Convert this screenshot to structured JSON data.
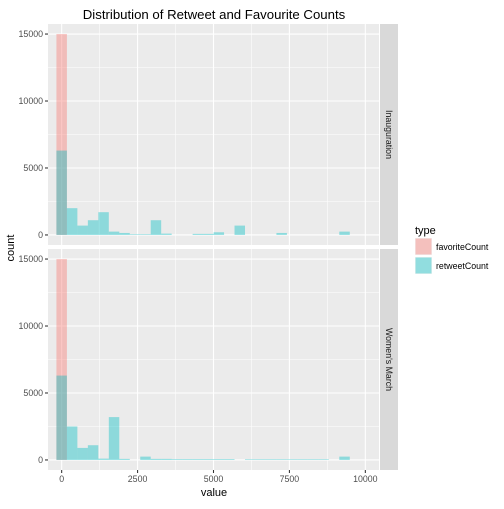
{
  "chart_data": {
    "type": "histogram",
    "title": "Distribution of Retweet and Favourite Counts",
    "xlabel": "value",
    "ylabel": "count",
    "xlim": [
      -450,
      10450
    ],
    "ylim": [
      -750,
      15750
    ],
    "x_ticks": [
      0,
      2500,
      5000,
      7500,
      10000
    ],
    "x_tick_labels": [
      "0",
      "2500",
      "5000",
      "7500",
      "10000"
    ],
    "y_ticks": [
      0,
      5000,
      10000,
      15000
    ],
    "y_tick_labels": [
      "0",
      "5000",
      "10000",
      "15000"
    ],
    "bin_width": 345,
    "grid": true,
    "legend": {
      "title": "type",
      "position": "right",
      "entries": [
        {
          "label": "favoriteCount",
          "color": "#f8766d"
        },
        {
          "label": "retweetCount",
          "color": "#00bfc4"
        }
      ]
    },
    "facets": [
      {
        "label": "Inauguration",
        "series": [
          {
            "name": "favoriteCount",
            "color": "#f8766d",
            "bins": [
              {
                "x": 0,
                "count": 15000
              }
            ]
          },
          {
            "name": "retweetCount",
            "color": "#00bfc4",
            "bins": [
              {
                "x": 0,
                "count": 6300
              },
              {
                "x": 345,
                "count": 2000
              },
              {
                "x": 690,
                "count": 700
              },
              {
                "x": 1035,
                "count": 1100
              },
              {
                "x": 1380,
                "count": 1700
              },
              {
                "x": 1725,
                "count": 250
              },
              {
                "x": 2070,
                "count": 150
              },
              {
                "x": 2415,
                "count": 50
              },
              {
                "x": 2760,
                "count": 50
              },
              {
                "x": 3105,
                "count": 1100
              },
              {
                "x": 3450,
                "count": 100
              },
              {
                "x": 4485,
                "count": 80
              },
              {
                "x": 4830,
                "count": 80
              },
              {
                "x": 5175,
                "count": 200
              },
              {
                "x": 5865,
                "count": 700
              },
              {
                "x": 7245,
                "count": 150
              },
              {
                "x": 9315,
                "count": 250
              }
            ]
          }
        ]
      },
      {
        "label": "Women's March",
        "series": [
          {
            "name": "favoriteCount",
            "color": "#f8766d",
            "bins": [
              {
                "x": 0,
                "count": 15000
              }
            ]
          },
          {
            "name": "retweetCount",
            "color": "#00bfc4",
            "bins": [
              {
                "x": 0,
                "count": 6300
              },
              {
                "x": 345,
                "count": 2500
              },
              {
                "x": 690,
                "count": 900
              },
              {
                "x": 1035,
                "count": 1100
              },
              {
                "x": 1380,
                "count": 100
              },
              {
                "x": 1725,
                "count": 3200
              },
              {
                "x": 2070,
                "count": 80
              },
              {
                "x": 2760,
                "count": 250
              },
              {
                "x": 3105,
                "count": 80
              },
              {
                "x": 3450,
                "count": 80
              },
              {
                "x": 3795,
                "count": 60
              },
              {
                "x": 4140,
                "count": 60
              },
              {
                "x": 4485,
                "count": 60
              },
              {
                "x": 4830,
                "count": 60
              },
              {
                "x": 5175,
                "count": 60
              },
              {
                "x": 5520,
                "count": 60
              },
              {
                "x": 6210,
                "count": 50
              },
              {
                "x": 6555,
                "count": 50
              },
              {
                "x": 6900,
                "count": 50
              },
              {
                "x": 7245,
                "count": 50
              },
              {
                "x": 7590,
                "count": 50
              },
              {
                "x": 7935,
                "count": 50
              },
              {
                "x": 8280,
                "count": 50
              },
              {
                "x": 8625,
                "count": 50
              },
              {
                "x": 9315,
                "count": 250
              }
            ]
          }
        ]
      }
    ]
  }
}
